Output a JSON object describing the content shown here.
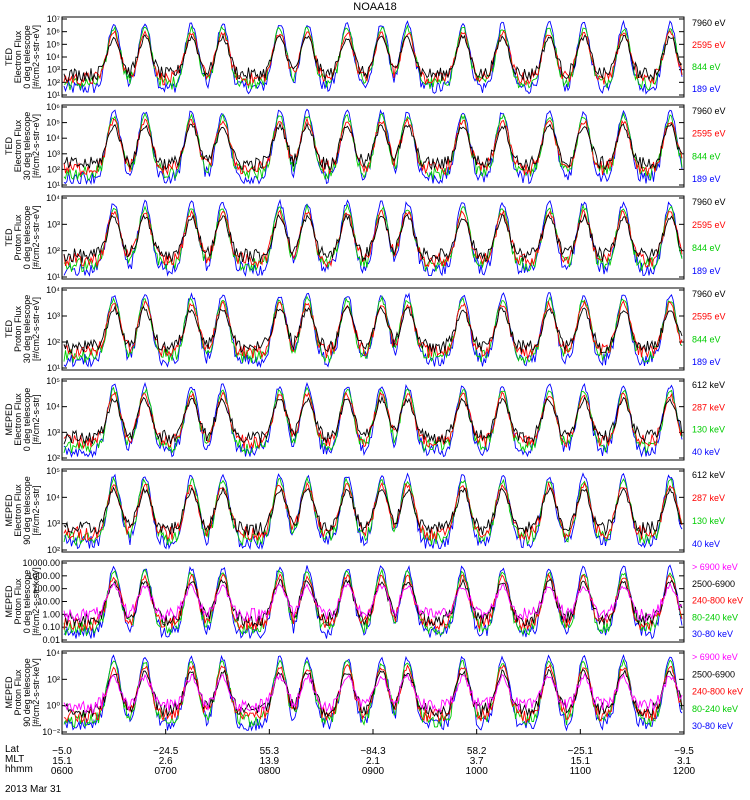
{
  "title": "NOAA18",
  "colors": {
    "blue": "#0000ff",
    "red": "#ff0000",
    "green": "#00cc00",
    "black": "#000000",
    "magenta": "#ff00ff"
  },
  "panels": [
    {
      "ylabel": [
        "TED",
        "Electron Flux",
        "0 deg telescope",
        "[#/cm2-s-str-eV]"
      ],
      "yticks": [
        "10¹",
        "10²",
        "10³",
        "10⁴",
        "10⁵",
        "10⁶",
        "10⁷"
      ],
      "legend": [
        {
          "text": "7960 eV",
          "color": "#000000"
        },
        {
          "text": "2595 eV",
          "color": "#ff0000"
        },
        {
          "text": "844 eV",
          "color": "#00cc00"
        },
        {
          "text": "189 eV",
          "color": "#0000ff"
        }
      ]
    },
    {
      "ylabel": [
        "TED",
        "Electron Flux",
        "30 deg telescope",
        "[#/cm2-s-str-eV]"
      ],
      "yticks": [
        "10¹",
        "10²",
        "10³",
        "10⁴",
        "10⁵",
        "10⁶"
      ],
      "legend": [
        {
          "text": "7960 eV",
          "color": "#000000"
        },
        {
          "text": "2595 eV",
          "color": "#ff0000"
        },
        {
          "text": "844 eV",
          "color": "#00cc00"
        },
        {
          "text": "189 eV",
          "color": "#0000ff"
        }
      ]
    },
    {
      "ylabel": [
        "TED",
        "Proton Flux",
        "0 deg telescope",
        "[#/cm2-s-str-eV]"
      ],
      "yticks": [
        "10¹",
        "10²",
        "10³",
        "10⁴"
      ],
      "legend": [
        {
          "text": "7960 eV",
          "color": "#000000"
        },
        {
          "text": "2595 eV",
          "color": "#ff0000"
        },
        {
          "text": "844 eV",
          "color": "#00cc00"
        },
        {
          "text": "189 eV",
          "color": "#0000ff"
        }
      ]
    },
    {
      "ylabel": [
        "TED",
        "Proton Flux",
        "30 deg telescope",
        "[#/cm2-s-str-eV]"
      ],
      "yticks": [
        "10¹",
        "10²",
        "10³",
        "10⁴"
      ],
      "legend": [
        {
          "text": "7960 eV",
          "color": "#000000"
        },
        {
          "text": "2595 eV",
          "color": "#ff0000"
        },
        {
          "text": "844 eV",
          "color": "#00cc00"
        },
        {
          "text": "189 eV",
          "color": "#0000ff"
        }
      ]
    },
    {
      "ylabel": [
        "MEPED",
        "Electron Flux",
        "0 deg telescope",
        "[#/cm2-s-str]"
      ],
      "yticks": [
        "10²",
        "10³",
        "10⁴",
        "10⁵"
      ],
      "legend": [
        {
          "text": "612 keV",
          "color": "#000000"
        },
        {
          "text": "287 keV",
          "color": "#ff0000"
        },
        {
          "text": "130 keV",
          "color": "#00cc00"
        },
        {
          "text": "40 keV",
          "color": "#0000ff"
        }
      ]
    },
    {
      "ylabel": [
        "MEPED",
        "Electron Flux",
        "90 deg telescope",
        "[#/cm2-s-str]"
      ],
      "yticks": [
        "10²",
        "10³",
        "10⁴",
        "10⁵"
      ],
      "legend": [
        {
          "text": "612 keV",
          "color": "#000000"
        },
        {
          "text": "287 keV",
          "color": "#ff0000"
        },
        {
          "text": "130 keV",
          "color": "#00cc00"
        },
        {
          "text": "40 keV",
          "color": "#0000ff"
        }
      ]
    },
    {
      "ylabel": [
        "MEPED",
        "Proton Flux",
        "0 deg telescope",
        "[#/cm2-s-str-keV]"
      ],
      "yticks": [
        "0.01",
        "0.10",
        "1.00",
        "10.00",
        "100.00",
        "1000.00",
        "10000.00"
      ],
      "legend": [
        {
          "text": "> 6900 keV",
          "color": "#ff00ff"
        },
        {
          "text": "2500-6900",
          "color": "#000000"
        },
        {
          "text": "240-800 keV",
          "color": "#ff0000"
        },
        {
          "text": "80-240 keV",
          "color": "#00cc00"
        },
        {
          "text": "30-80 keV",
          "color": "#0000ff"
        }
      ]
    },
    {
      "ylabel": [
        "MEPED",
        "Proton Flux",
        "90 deg telescope",
        "[#/cm2-s-str-keV]"
      ],
      "yticks": [
        "10⁻²",
        "10⁰",
        "10²",
        "10⁴"
      ],
      "legend": [
        {
          "text": "> 6900 keV",
          "color": "#ff00ff"
        },
        {
          "text": "2500-6900",
          "color": "#000000"
        },
        {
          "text": "240-800 keV",
          "color": "#ff0000"
        },
        {
          "text": "80-240 keV",
          "color": "#00cc00"
        },
        {
          "text": "30-80 keV",
          "color": "#0000ff"
        }
      ]
    }
  ],
  "xaxis": {
    "row_labels": [
      "Lat",
      "MLT",
      "hhmm"
    ],
    "date": "2013 Mar 31",
    "ticks": [
      {
        "lat": "−5.0",
        "mlt": "15.1",
        "hhmm": "0600"
      },
      {
        "lat": "−24.5",
        "mlt": "2.6",
        "hhmm": "0700"
      },
      {
        "lat": "55.3",
        "mlt": "13.9",
        "hhmm": "0800"
      },
      {
        "lat": "−84.3",
        "mlt": "2.1",
        "hhmm": "0900"
      },
      {
        "lat": "58.2",
        "mlt": "3.7",
        "hhmm": "1000"
      },
      {
        "lat": "−25.1",
        "mlt": "15.1",
        "hhmm": "1100"
      },
      {
        "lat": "−9.5",
        "mlt": "3.1",
        "hhmm": "1200"
      }
    ]
  },
  "chart_data": {
    "type": "line",
    "x_range": [
      "0600",
      "1200"
    ],
    "passes_in_hhmm": [
      "0630",
      "0648",
      "0715",
      "0733",
      "0806",
      "0822",
      "0845",
      "0905",
      "0920",
      "0952",
      "1015",
      "1042",
      "1102",
      "1125",
      "1152"
    ],
    "y_scale": "log",
    "series_by_panel": [
      [
        "7960 eV",
        "2595 eV",
        "844 eV",
        "189 eV"
      ],
      [
        "7960 eV",
        "2595 eV",
        "844 eV",
        "189 eV"
      ],
      [
        "7960 eV",
        "2595 eV",
        "844 eV",
        "189 eV"
      ],
      [
        "7960 eV",
        "2595 eV",
        "844 eV",
        "189 eV"
      ],
      [
        "612 keV",
        "287 keV",
        "130 keV",
        "40 keV"
      ],
      [
        "612 keV",
        "287 keV",
        "130 keV",
        "40 keV"
      ],
      [
        "> 6900 keV",
        "2500-6900",
        "240-800 keV",
        "80-240 keV",
        "30-80 keV"
      ],
      [
        "> 6900 keV",
        "2500-6900",
        "240-800 keV",
        "80-240 keV",
        "30-80 keV"
      ]
    ]
  }
}
